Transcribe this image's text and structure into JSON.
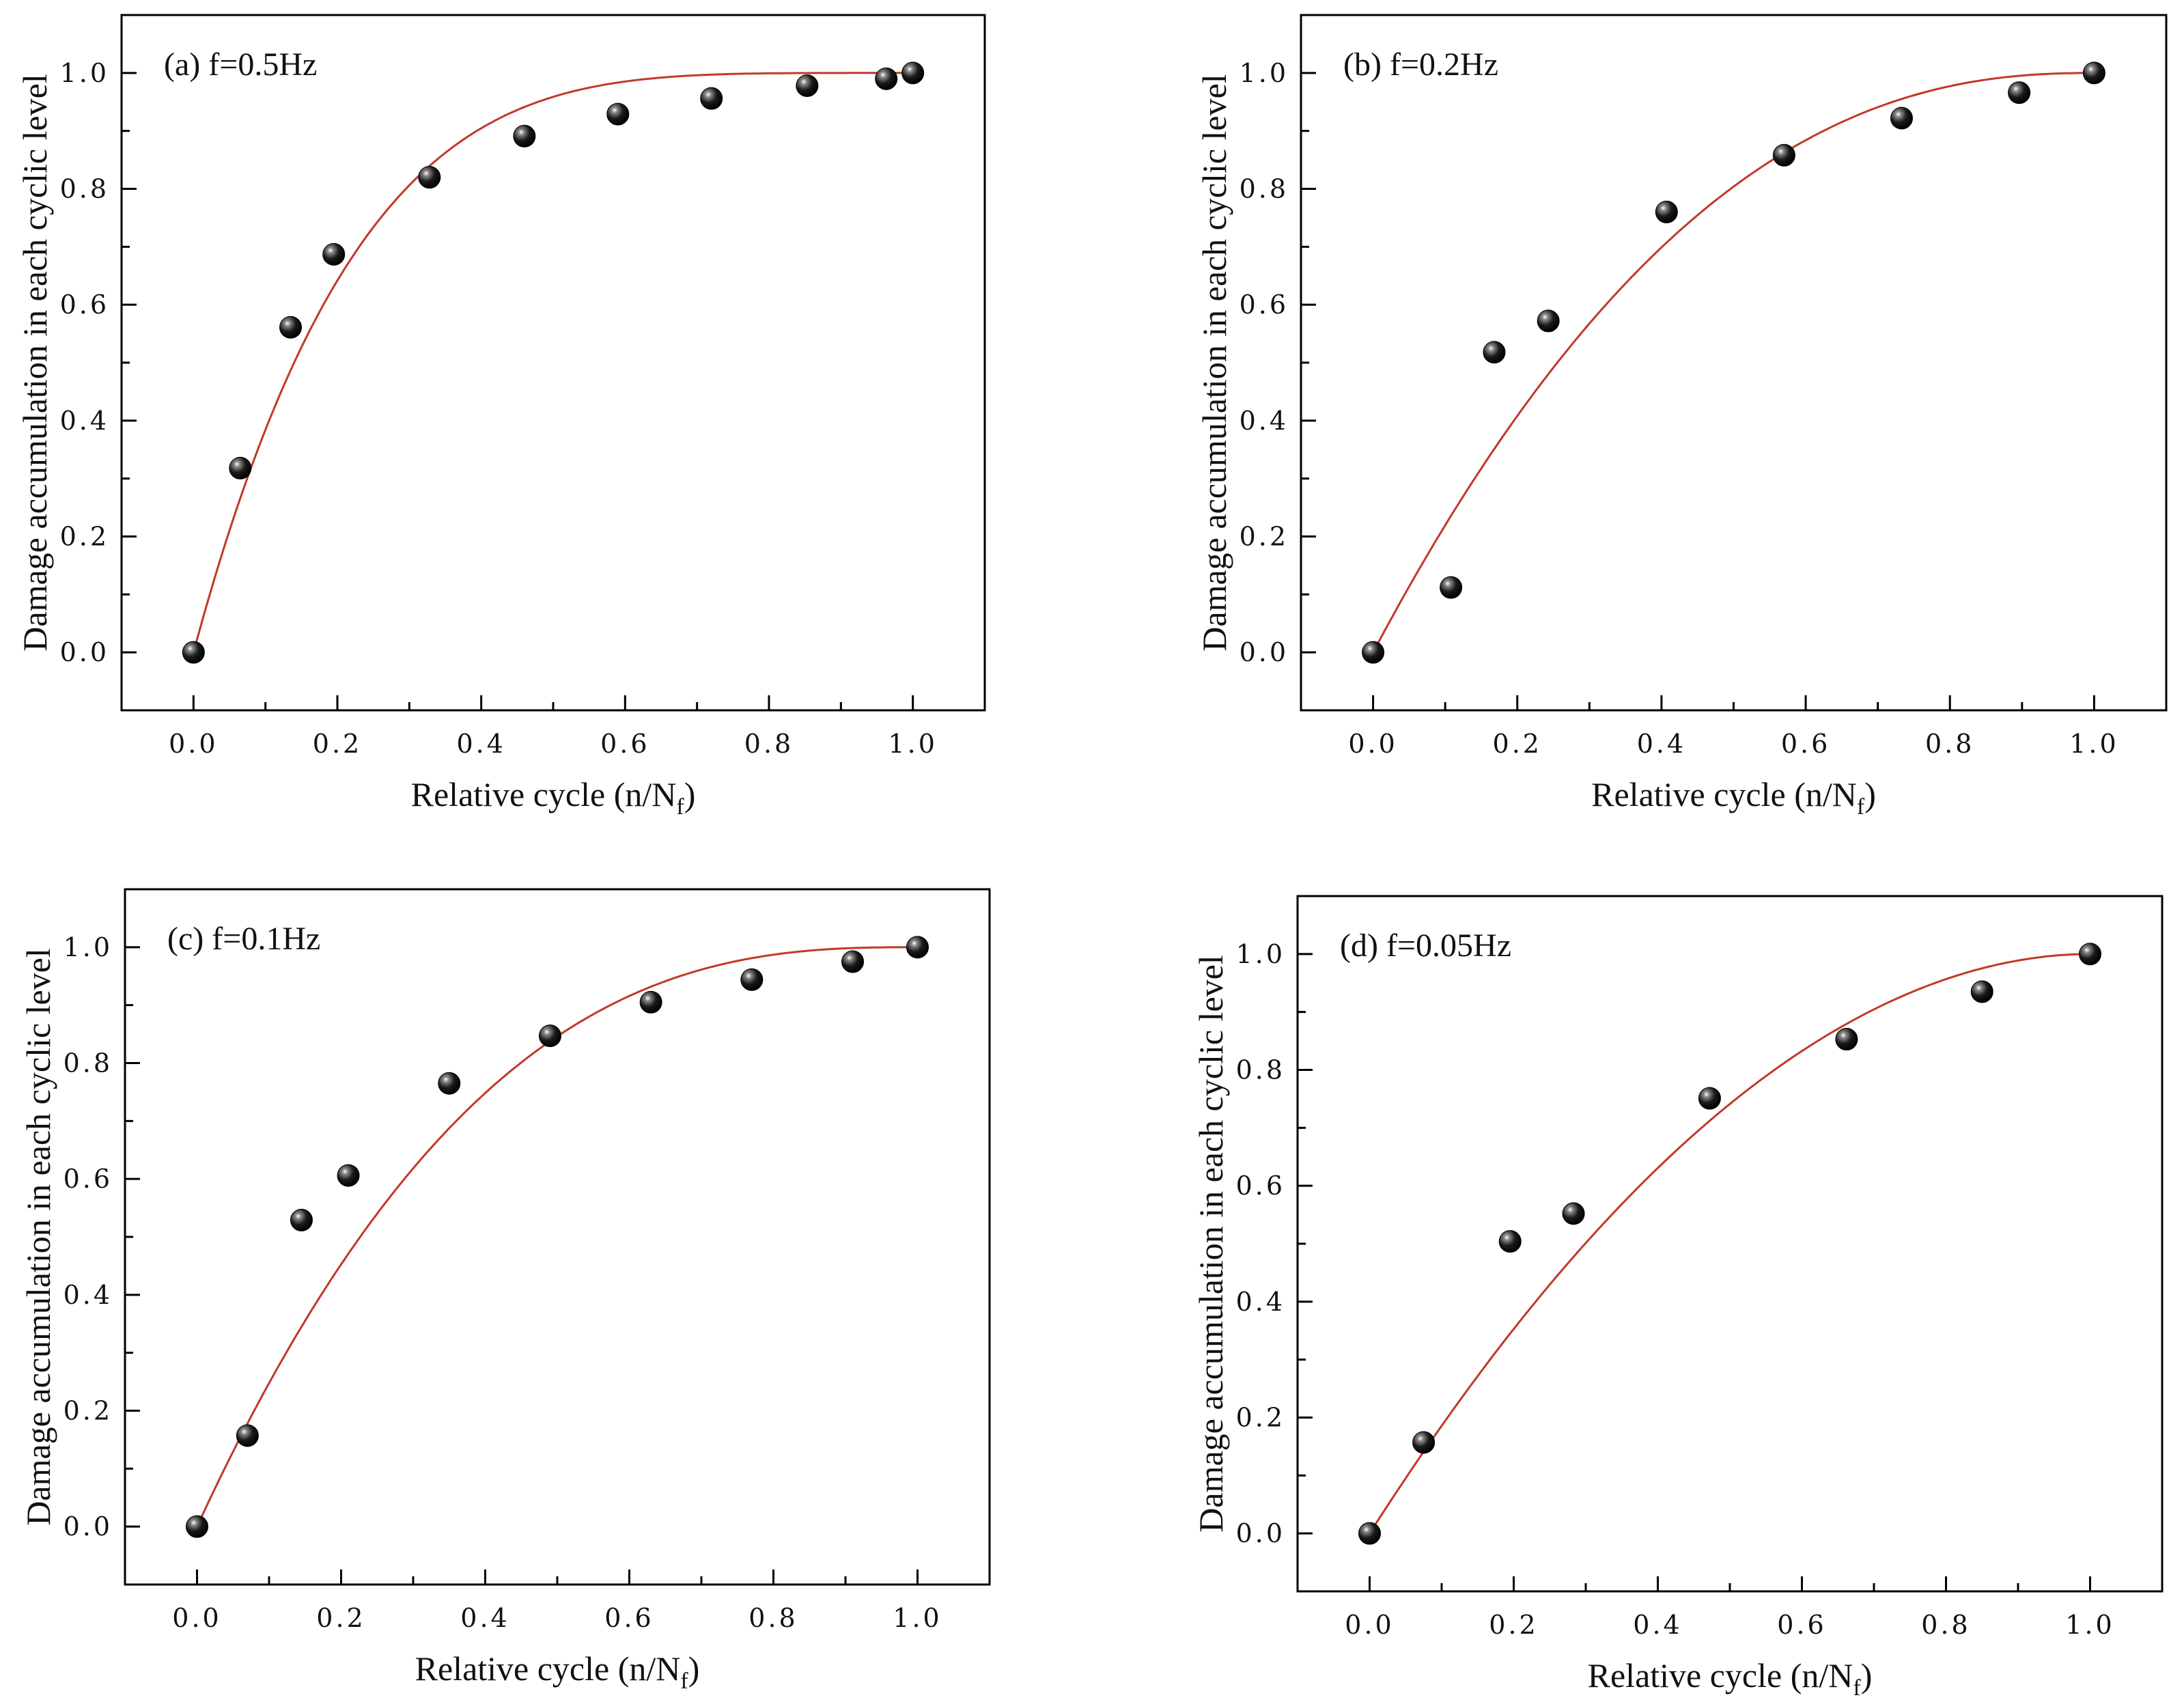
{
  "colors": {
    "fit_line": "#c0392b",
    "marker": "#000000",
    "marker_highlight": "#ffffff",
    "axes": "#000000"
  },
  "chart_data": [
    {
      "type": "scatter",
      "title": "(a) f=0.5Hz",
      "xlabel": "Relative cycle (n/N",
      "xlabel_sub": "f",
      "xlabel_close": ")",
      "ylabel": "Damage accumulation in each cyclic level",
      "xlim": [
        -0.1,
        1.1
      ],
      "ylim": [
        -0.1,
        1.1
      ],
      "xticks": [
        "0.0",
        "0.2",
        "0.4",
        "0.6",
        "0.8",
        "1.0"
      ],
      "yticks": [
        "0.0",
        "0.2",
        "0.4",
        "0.6",
        "0.8",
        "1.0"
      ],
      "x": [
        0.0,
        0.065,
        0.135,
        0.195,
        0.328,
        0.46,
        0.59,
        0.72,
        0.853,
        0.963,
        1.0
      ],
      "y": [
        0.0,
        0.318,
        0.561,
        0.687,
        0.82,
        0.891,
        0.929,
        0.956,
        0.978,
        0.99,
        1.0
      ],
      "fit": {
        "model": "1-(1-x)^p",
        "p": 4.6
      }
    },
    {
      "type": "scatter",
      "title": "(b) f=0.2Hz",
      "xlabel": "Relative cycle (n/N",
      "xlabel_sub": "f",
      "xlabel_close": ")",
      "ylabel": "Damage accumulation in each cyclic level",
      "xlim": [
        -0.1,
        1.1
      ],
      "ylim": [
        -0.1,
        1.1
      ],
      "xticks": [
        "0.0",
        "0.2",
        "0.4",
        "0.6",
        "0.8",
        "1.0"
      ],
      "yticks": [
        "0.0",
        "0.2",
        "0.4",
        "0.6",
        "0.8",
        "1.0"
      ],
      "x": [
        0.0,
        0.108,
        0.168,
        0.243,
        0.407,
        0.57,
        0.733,
        0.896,
        1.0
      ],
      "y": [
        0.0,
        0.112,
        0.518,
        0.572,
        0.76,
        0.858,
        0.922,
        0.966,
        1.0
      ],
      "fit": {
        "model": "1-(1-x)^p",
        "p": 2.35
      }
    },
    {
      "type": "scatter",
      "title": "(c) f=0.1Hz",
      "xlabel": "Relative cycle (n/N",
      "xlabel_sub": "f",
      "xlabel_close": ")",
      "ylabel": "Damage accumulation in each cyclic level",
      "xlim": [
        -0.1,
        1.1
      ],
      "ylim": [
        -0.1,
        1.1
      ],
      "xticks": [
        "0.0",
        "0.2",
        "0.4",
        "0.6",
        "0.8",
        "1.0"
      ],
      "yticks": [
        "0.0",
        "0.2",
        "0.4",
        "0.6",
        "0.8",
        "1.0"
      ],
      "x": [
        0.0,
        0.07,
        0.145,
        0.21,
        0.35,
        0.49,
        0.63,
        0.77,
        0.91,
        1.0
      ],
      "y": [
        0.0,
        0.157,
        0.529,
        0.606,
        0.765,
        0.847,
        0.905,
        0.944,
        0.975,
        1.0
      ],
      "fit": {
        "model": "1-(1-x)^p",
        "p": 2.7
      }
    },
    {
      "type": "scatter",
      "title": "(d) f=0.05Hz",
      "xlabel": "Relative cycle (n/N",
      "xlabel_sub": "f",
      "xlabel_close": ")",
      "ylabel": "Damage accumulation in each cyclic level",
      "xlim": [
        -0.1,
        1.1
      ],
      "ylim": [
        -0.1,
        1.1
      ],
      "xticks": [
        "0.0",
        "0.2",
        "0.4",
        "0.6",
        "0.8",
        "1.0"
      ],
      "yticks": [
        "0.0",
        "0.2",
        "0.4",
        "0.6",
        "0.8",
        "1.0"
      ],
      "x": [
        0.0,
        0.075,
        0.195,
        0.283,
        0.472,
        0.662,
        0.85,
        1.0
      ],
      "y": [
        0.0,
        0.157,
        0.504,
        0.552,
        0.751,
        0.853,
        0.935,
        1.0
      ],
      "fit": {
        "model": "1-(1-x)^p",
        "p": 1.95
      }
    }
  ]
}
